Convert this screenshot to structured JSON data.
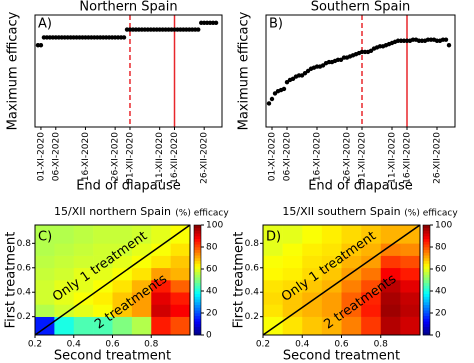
{
  "chart_data": [
    {
      "type": "scatter",
      "title": "Northern Spain",
      "label": "A)",
      "ylabel": "Maximum efficacy",
      "xlabel": "End of diapause",
      "color": "#000000",
      "x": [
        "2020-10-31",
        "2020-11-01",
        "2020-11-02",
        "2020-11-03",
        "2020-11-04",
        "2020-11-05",
        "2020-11-06",
        "2020-11-07",
        "2020-11-08",
        "2020-11-09",
        "2020-11-10",
        "2020-11-11",
        "2020-11-12",
        "2020-11-13",
        "2020-11-14",
        "2020-11-15",
        "2020-11-16",
        "2020-11-17",
        "2020-11-18",
        "2020-11-19",
        "2020-11-20",
        "2020-11-21",
        "2020-11-22",
        "2020-11-23",
        "2020-11-24",
        "2020-11-25",
        "2020-11-26",
        "2020-11-27",
        "2020-11-28",
        "2020-11-29",
        "2020-11-30",
        "2020-12-01",
        "2020-12-02",
        "2020-12-03",
        "2020-12-04",
        "2020-12-05",
        "2020-12-06",
        "2020-12-07",
        "2020-12-08",
        "2020-12-09",
        "2020-12-10",
        "2020-12-11",
        "2020-12-12",
        "2020-12-13",
        "2020-12-14",
        "2020-12-15",
        "2020-12-16",
        "2020-12-17",
        "2020-12-18",
        "2020-12-19",
        "2020-12-20",
        "2020-12-21",
        "2020-12-22",
        "2020-12-23",
        "2020-12-24",
        "2020-12-25",
        "2020-12-26",
        "2020-12-27",
        "2020-12-28",
        "2020-12-29",
        "2020-12-30"
      ],
      "values": [
        73,
        73,
        80,
        80,
        80,
        80,
        80,
        80,
        80,
        80,
        80,
        80,
        80,
        80,
        80,
        80,
        80,
        80,
        80,
        80,
        80,
        80,
        80,
        80,
        80,
        80,
        80,
        80,
        80,
        80,
        87,
        87,
        87,
        87,
        87,
        87,
        87,
        87,
        87,
        87,
        87,
        87,
        87,
        87,
        87,
        87,
        87,
        87,
        87,
        87,
        87,
        87,
        87,
        87,
        87,
        93,
        93,
        93,
        93,
        93,
        93
      ],
      "xlim": [
        "2020-10-30",
        "2021-01-01"
      ],
      "ylim": [
        0,
        100
      ],
      "xticks": [
        {
          "value": "2020-11-01",
          "label": "01-XI-2020"
        },
        {
          "value": "2020-11-06",
          "label": "06-XI-2020"
        },
        {
          "value": "2020-11-16",
          "label": "16-XI-2020"
        },
        {
          "value": "2020-11-26",
          "label": "26-XI-2020"
        },
        {
          "value": "2020-12-01",
          "label": "01-XII-2020"
        },
        {
          "value": "2020-12-11",
          "label": "11-XII-2020"
        },
        {
          "value": "2020-12-16",
          "label": "16-XII-2020"
        },
        {
          "value": "2020-12-26",
          "label": "26-XII-2020"
        }
      ],
      "vlines": [
        {
          "x": "2020-12-01",
          "style": "dashed",
          "color": "#e8262b"
        },
        {
          "x": "2020-12-16",
          "style": "solid",
          "color": "#e8262b"
        }
      ]
    },
    {
      "type": "scatter",
      "title": "Southern Spain",
      "label": "B)",
      "ylabel": "Maximum efficacy",
      "xlabel": "End of diapause",
      "color": "#000000",
      "x": [
        "2020-10-31",
        "2020-11-01",
        "2020-11-02",
        "2020-11-03",
        "2020-11-04",
        "2020-11-05",
        "2020-11-06",
        "2020-11-07",
        "2020-11-08",
        "2020-11-09",
        "2020-11-10",
        "2020-11-11",
        "2020-11-12",
        "2020-11-13",
        "2020-11-14",
        "2020-11-15",
        "2020-11-16",
        "2020-11-17",
        "2020-11-18",
        "2020-11-19",
        "2020-11-20",
        "2020-11-21",
        "2020-11-22",
        "2020-11-23",
        "2020-11-24",
        "2020-11-25",
        "2020-11-26",
        "2020-11-27",
        "2020-11-28",
        "2020-11-29",
        "2020-11-30",
        "2020-12-01",
        "2020-12-02",
        "2020-12-03",
        "2020-12-04",
        "2020-12-05",
        "2020-12-06",
        "2020-12-07",
        "2020-12-08",
        "2020-12-09",
        "2020-12-10",
        "2020-12-11",
        "2020-12-12",
        "2020-12-13",
        "2020-12-14",
        "2020-12-15",
        "2020-12-16",
        "2020-12-17",
        "2020-12-18",
        "2020-12-19",
        "2020-12-20",
        "2020-12-21",
        "2020-12-22",
        "2020-12-23",
        "2020-12-24",
        "2020-12-25",
        "2020-12-26",
        "2020-12-27",
        "2020-12-28",
        "2020-12-29",
        "2020-12-30"
      ],
      "values": [
        21,
        25,
        30,
        32,
        33,
        34,
        40,
        42,
        43,
        45,
        46,
        46,
        48,
        50,
        52,
        53,
        54,
        54,
        55,
        57,
        58,
        58,
        59,
        60,
        60,
        62,
        62,
        63,
        64,
        65,
        66,
        67,
        67,
        67,
        68,
        70,
        71,
        72,
        72,
        73,
        74,
        75,
        76,
        77,
        77,
        77,
        77,
        77,
        78,
        78,
        77,
        77,
        77,
        78,
        78,
        78,
        77,
        77,
        78,
        78,
        73
      ],
      "xlim": [
        "2020-10-30",
        "2021-01-01"
      ],
      "ylim": [
        0,
        100
      ],
      "xticks": [
        {
          "value": "2020-11-01",
          "label": "01-XI-2020"
        },
        {
          "value": "2020-11-06",
          "label": "06-XI-2020"
        },
        {
          "value": "2020-11-16",
          "label": "16-XI-2020"
        },
        {
          "value": "2020-11-26",
          "label": "26-XI-2020"
        },
        {
          "value": "2020-12-01",
          "label": "01-XII-2020"
        },
        {
          "value": "2020-12-11",
          "label": "11-XII-2020"
        },
        {
          "value": "2020-12-16",
          "label": "16-XII-2020"
        },
        {
          "value": "2020-12-26",
          "label": "26-XII-2020"
        }
      ],
      "vlines": [
        {
          "x": "2020-12-01",
          "style": "dashed",
          "color": "#e8262b"
        },
        {
          "x": "2020-12-16",
          "style": "solid",
          "color": "#e8262b"
        }
      ]
    },
    {
      "type": "heatmap",
      "title": "15/XII northern Spain",
      "label": "C)",
      "ylabel": "First treatment",
      "xlabel": "Second treatment",
      "colorbar_label": "(%) efficacy",
      "colormap": "jet",
      "annotations": [
        "Only 1 treatment",
        "2 treatments"
      ],
      "xbins": [
        0.2,
        0.3,
        0.4,
        0.5,
        0.6,
        0.7,
        0.8,
        0.9,
        1.0
      ],
      "ybins": [
        0.05,
        0.2,
        0.3,
        0.4,
        0.5,
        0.6,
        0.7,
        0.8,
        0.95
      ],
      "z": [
        [
          15,
          40,
          45,
          45,
          50,
          55,
          85,
          80
        ],
        [
          55,
          58,
          60,
          62,
          68,
          72,
          92,
          88
        ],
        [
          58,
          60,
          62,
          64,
          68,
          72,
          90,
          85
        ],
        [
          58,
          60,
          60,
          62,
          65,
          70,
          85,
          78
        ],
        [
          57,
          58,
          60,
          60,
          62,
          65,
          72,
          70
        ],
        [
          56,
          57,
          58,
          58,
          60,
          62,
          65,
          68
        ],
        [
          55,
          56,
          57,
          58,
          58,
          60,
          62,
          65
        ],
        [
          55,
          55,
          56,
          57,
          57,
          58,
          60,
          62
        ]
      ],
      "xlim": [
        0.2,
        1.0
      ],
      "ylim": [
        0.05,
        0.95
      ],
      "xticks": [
        0.2,
        0.4,
        0.6,
        0.8
      ],
      "yticks": [
        0.2,
        0.4,
        0.6,
        0.8
      ],
      "clim": [
        0,
        100
      ],
      "cticks": [
        0,
        20,
        40,
        60,
        80,
        100
      ]
    },
    {
      "type": "heatmap",
      "title": "15/XII southern Spain",
      "label": "D)",
      "ylabel": "First treatment",
      "xlabel": "Second treatment",
      "colorbar_label": "(%) efficacy",
      "colormap": "jet",
      "annotations": [
        "Only 1 treatment",
        "2 treatments"
      ],
      "xbins": [
        0.2,
        0.3,
        0.4,
        0.5,
        0.6,
        0.7,
        0.8,
        0.9,
        1.0
      ],
      "ybins": [
        0.05,
        0.2,
        0.3,
        0.4,
        0.5,
        0.6,
        0.7,
        0.8,
        0.95
      ],
      "z": [
        [
          62,
          65,
          68,
          70,
          75,
          82,
          95,
          92
        ],
        [
          65,
          68,
          70,
          72,
          78,
          85,
          97,
          94
        ],
        [
          66,
          68,
          70,
          72,
          78,
          84,
          96,
          93
        ],
        [
          65,
          66,
          68,
          70,
          75,
          80,
          94,
          90
        ],
        [
          63,
          64,
          66,
          68,
          72,
          76,
          88,
          85
        ],
        [
          62,
          63,
          65,
          66,
          70,
          72,
          82,
          80
        ],
        [
          60,
          62,
          64,
          65,
          68,
          70,
          75,
          74
        ],
        [
          60,
          60,
          62,
          64,
          66,
          68,
          70,
          70
        ]
      ],
      "xlim": [
        0.2,
        1.0
      ],
      "ylim": [
        0.05,
        0.95
      ],
      "xticks": [
        0.2,
        0.4,
        0.6,
        0.8
      ],
      "yticks": [
        0.2,
        0.4,
        0.6,
        0.8
      ],
      "clim": [
        0,
        100
      ],
      "cticks": [
        0,
        20,
        40,
        60,
        80,
        100
      ]
    }
  ]
}
